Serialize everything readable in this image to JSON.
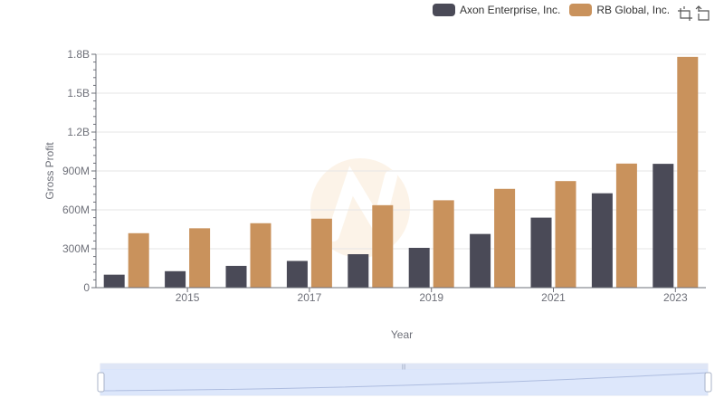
{
  "legend": {
    "items": [
      {
        "label": "Axon Enterprise, Inc.",
        "color": "#4a4a57"
      },
      {
        "label": "RB Global, Inc.",
        "color": "#c9925c"
      }
    ]
  },
  "toolbox": {
    "icons": [
      "zoom-icon",
      "restore-icon"
    ]
  },
  "chart_data": {
    "type": "bar",
    "categories": [
      "2014",
      "2015",
      "2016",
      "2017",
      "2018",
      "2019",
      "2020",
      "2021",
      "2022",
      "2023"
    ],
    "x_tick_labels": [
      "2015",
      "2017",
      "2019",
      "2021",
      "2023"
    ],
    "series": [
      {
        "name": "Axon Enterprise, Inc.",
        "color": "#4a4a57",
        "values": [
          100000000,
          127000000,
          168000000,
          206000000,
          258000000,
          307000000,
          414000000,
          540000000,
          728000000,
          955000000
        ]
      },
      {
        "name": "RB Global, Inc.",
        "color": "#c9925c",
        "values": [
          420000000,
          458000000,
          497000000,
          532000000,
          636000000,
          674000000,
          762000000,
          822000000,
          957000000,
          1780000000
        ]
      }
    ],
    "y_ticks": [
      {
        "value": 0,
        "label": "0"
      },
      {
        "value": 300000000,
        "label": "300M"
      },
      {
        "value": 600000000,
        "label": "600M"
      },
      {
        "value": 900000000,
        "label": "900M"
      },
      {
        "value": 1200000000,
        "label": "1.2B"
      },
      {
        "value": 1500000000,
        "label": "1.5B"
      },
      {
        "value": 1800000000,
        "label": "1.8B"
      }
    ],
    "ylim": [
      0,
      1800000000
    ],
    "xlabel": "Year",
    "ylabel": "Gross Profit",
    "grid": true,
    "legend_position": "top-right"
  }
}
